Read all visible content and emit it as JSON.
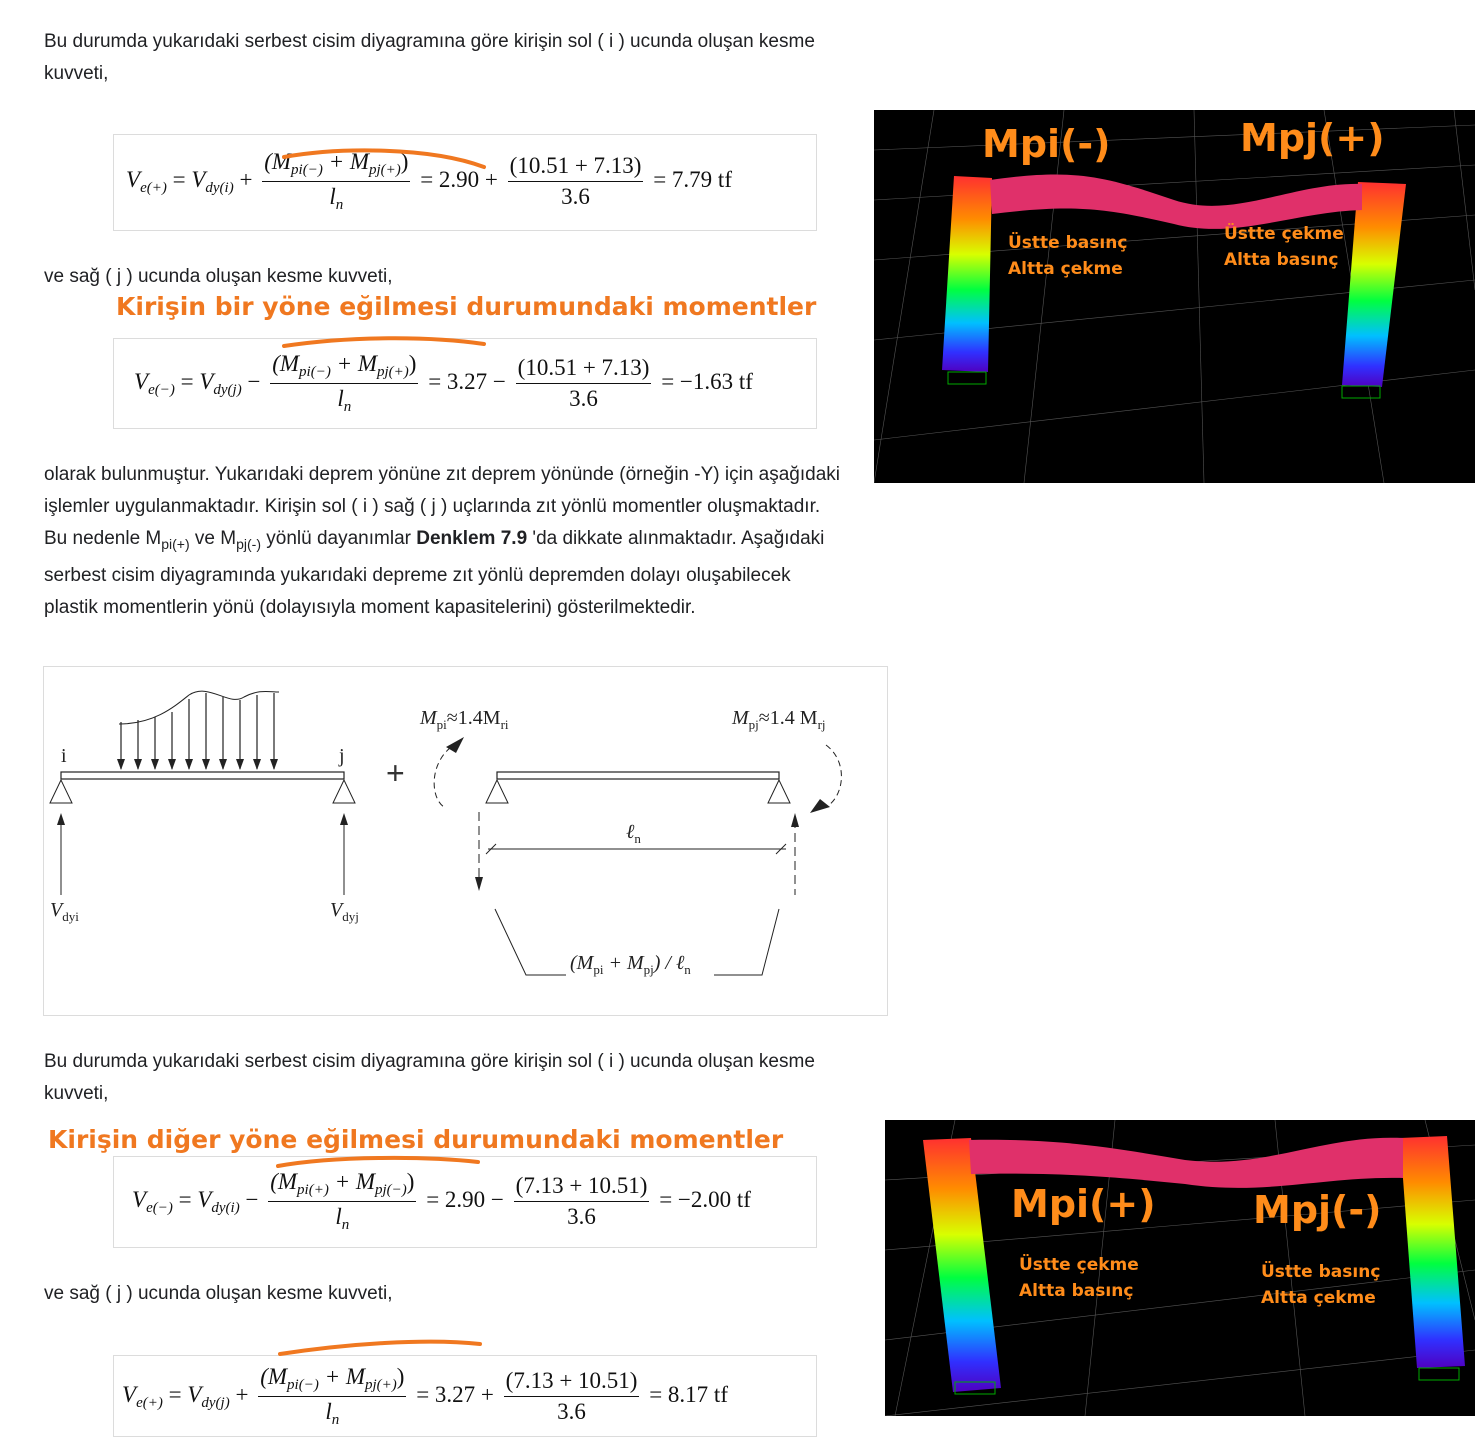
{
  "paragraphs": {
    "p1_line1": "Bu durumda yukarıdaki serbest cisim diyagramına göre kirişin sol ( i ) ucunda oluşan kesme",
    "p1_line2": "kuvveti,",
    "p2": "ve sağ ( j ) ucunda oluşan kesme kuvveti,",
    "p3_line1": "olarak bulunmuştur. Yukarıdaki deprem yönüne zıt deprem yönünde (örneğin -Y) için aşağıdaki",
    "p3_line2": "işlemler uygulanmaktadır. Kirişin sol ( i ) sağ ( j ) uçlarında zıt yönlü momentler oluşmaktadır.",
    "p3_line3_a": "Bu nedenle M",
    "p3_line3_sub1": "pi(+)",
    "p3_line3_b": " ve M",
    "p3_line3_sub2": "pj(-)",
    "p3_line3_c": " yönlü dayanımlar ",
    "p3_line3_bold": "Denklem 7.9",
    "p3_line3_d": " 'da dikkate alınmaktadır. Aşağıdaki",
    "p3_line4": "serbest cisim diyagramında yukarıdaki depreme zıt yönlü depremden dolayı oluşabilecek",
    "p3_line5": "plastik momentlerin yönü (dolayısıyla moment kapasitelerini) gösterilmektedir.",
    "p4_line1": "Bu durumda yukarıdaki serbest cisim diyagramına göre kirişin sol ( i ) ucunda oluşan kesme",
    "p4_line2": "kuvveti,",
    "p5": "ve sağ ( j ) ucunda oluşan kesme kuvveti,"
  },
  "headings": {
    "h1": "Kirişin bir yöne eğilmesi durumundaki momentler",
    "h2": "Kirişin diğer yöne eğilmesi durumundaki momentler"
  },
  "equations": {
    "eq1": {
      "lhs": "V",
      "lhs_sub": "e(+)",
      "vdy_sub": "dy(i)",
      "op": "+",
      "num": "(M",
      "n1": "pi(−)",
      "mid": " + M",
      "n2": "pj(+)",
      "close": ")",
      "den": "l",
      "den_sub": "n",
      "val1": "= 2.90 +",
      "num2": "(10.51 + 7.13)",
      "den2": "3.6",
      "result": "= 7.79 tf"
    },
    "eq2": {
      "lhs": "V",
      "lhs_sub": "e(−)",
      "vdy_sub": "dy(j)",
      "op": "−",
      "num": "(M",
      "n1": "pi(−)",
      "mid": " + M",
      "n2": "pj(+)",
      "close": ")",
      "den": "l",
      "den_sub": "n",
      "val1": "= 3.27 −",
      "num2": "(10.51 + 7.13)",
      "den2": "3.6",
      "result": "= −1.63 tf"
    },
    "eq3": {
      "lhs": "V",
      "lhs_sub": "e(−)",
      "vdy_sub": "dy(i)",
      "op": "−",
      "num": "(M",
      "n1": "pi(+)",
      "mid": " + M",
      "n2": "pj(−)",
      "close": ")",
      "den": "l",
      "den_sub": "n",
      "val1": "= 2.90 −",
      "num2": "(7.13 + 10.51)",
      "den2": "3.6",
      "result": "= −2.00 tf"
    },
    "eq4": {
      "lhs": "V",
      "lhs_sub": "e(+)",
      "vdy_sub": "dy(j)",
      "op": "+",
      "num": "(M",
      "n1": "pi(−)",
      "mid": " + M",
      "n2": "pj(+)",
      "close": ")",
      "den": "l",
      "den_sub": "n",
      "val1": "= 3.27 +",
      "num2": "(7.13 + 10.51)",
      "den2": "3.6",
      "result": "= 8.17 tf"
    }
  },
  "diagram": {
    "label_i": "i",
    "label_j": "j",
    "plus": "+",
    "mpi": "M",
    "mpi_sub": "pi",
    "mpi_eq": "≈1.4M",
    "mpi_sub2": "ri",
    "mpj": "M",
    "mpj_sub": "pj",
    "mpj_eq": "≈1.4 M",
    "mpj_sub2": "rj",
    "ln": "ℓ",
    "ln_sub": "n",
    "vdyi": "V",
    "vdyi_sub": "dyi",
    "vdyj": "V",
    "vdyj_sub": "dyj",
    "shear_a": "(M",
    "shear_s1": "pi",
    "shear_b": " + M",
    "shear_s2": "pj",
    "shear_c": ") / ℓ",
    "shear_s3": "n"
  },
  "photo1": {
    "mpi": "Mpi(-)",
    "mpj": "Mpj(+)",
    "left_top": "Üstte basınç",
    "left_bottom": "Altta çekme",
    "right_top": "Üstte çekme",
    "right_bottom": "Altta basınç"
  },
  "photo2": {
    "mpi": "Mpi(+)",
    "mpj": "Mpj(-)",
    "left_top": "Üstte çekme",
    "left_bottom": "Altta basınç",
    "right_top": "Üstte basınç",
    "right_bottom": "Altta çekme"
  },
  "colors": {
    "accent_orange": "#f07820",
    "beam_pink": "#e0306a",
    "photo_bg": "#000000"
  }
}
